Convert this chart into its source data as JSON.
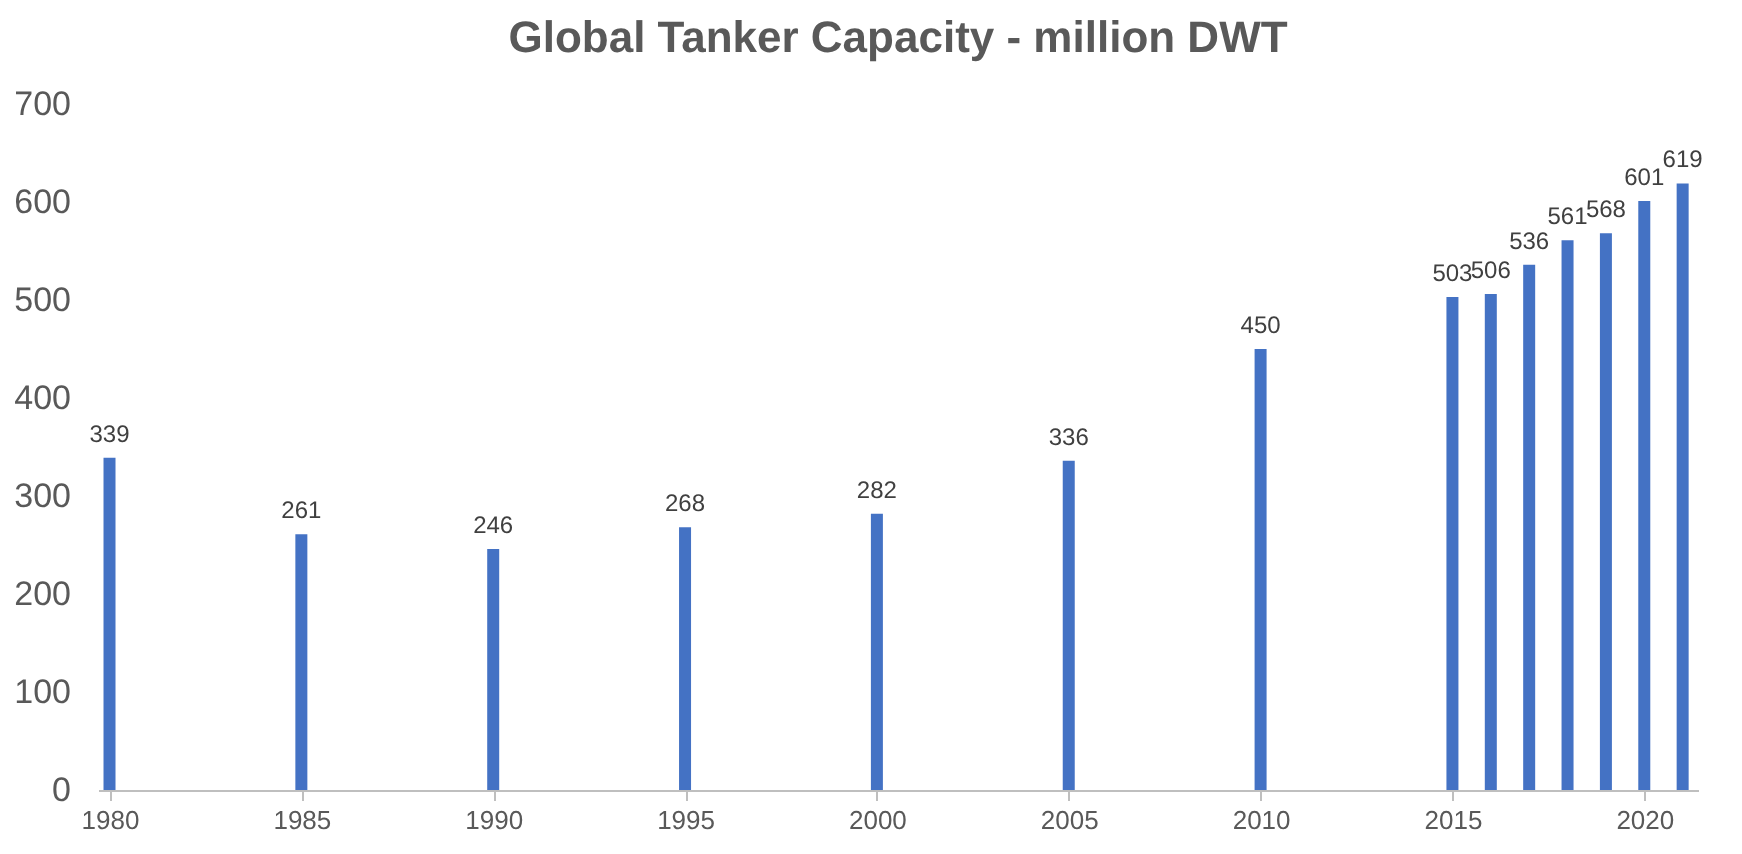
{
  "chart_data": {
    "type": "bar",
    "title": "Global Tanker Capacity - million DWT",
    "x": [
      1980,
      1985,
      1990,
      1995,
      2000,
      2005,
      2010,
      2015,
      2016,
      2017,
      2018,
      2019,
      2020,
      2021
    ],
    "series": [
      {
        "color": "#4472c4",
        "values": [
          339,
          261,
          246,
          268,
          282,
          336,
          450,
          503,
          506,
          536,
          561,
          568,
          601,
          619
        ]
      }
    ],
    "xlim": [
      1979.7,
      2021.4
    ],
    "xticks": [
      1980,
      1985,
      1990,
      1995,
      2000,
      2005,
      2010,
      2015,
      2020
    ],
    "ylim": [
      0,
      700
    ],
    "yticks": [
      0,
      100,
      200,
      300,
      400,
      500,
      600,
      700
    ],
    "data_labels": true,
    "grid": false,
    "legend": false
  }
}
